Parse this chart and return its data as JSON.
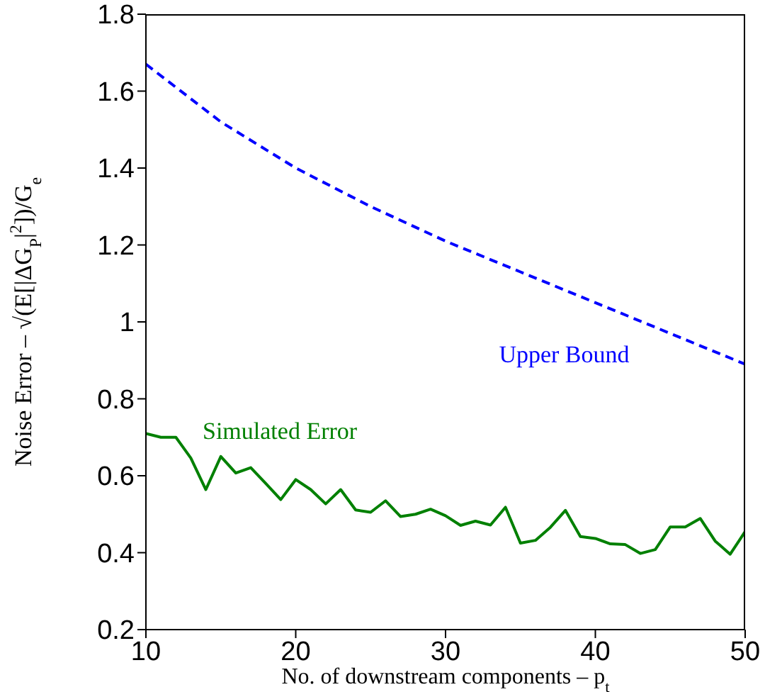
{
  "chart_data": {
    "type": "line",
    "xlabel": "No. of downstream components – p$_{t}$",
    "ylabel": "Noise Error – √(E[|ΔG$_{P}$|$^{2}$])/G$_{e}$",
    "series": [
      {
        "name": "Upper Bound",
        "color": "#0000ff",
        "line_style": "dashed",
        "x": [
          10,
          15,
          20,
          25,
          30,
          35,
          40,
          45,
          50
        ],
        "values": [
          1.67,
          1.52,
          1.4,
          1.3,
          1.21,
          1.13,
          1.05,
          0.97,
          0.89
        ]
      },
      {
        "name": "Simulated Error",
        "color": "#008000",
        "line_style": "solid",
        "x": [
          10,
          11,
          12,
          13,
          14,
          15,
          16,
          17,
          18,
          19,
          20,
          21,
          22,
          23,
          24,
          25,
          26,
          27,
          28,
          29,
          30,
          31,
          32,
          33,
          34,
          35,
          36,
          37,
          38,
          39,
          40,
          41,
          42,
          43,
          44,
          45,
          46,
          47,
          48,
          49,
          50
        ],
        "values": [
          0.71,
          0.7,
          0.7,
          0.646,
          0.564,
          0.65,
          0.607,
          0.621,
          0.58,
          0.538,
          0.59,
          0.564,
          0.527,
          0.564,
          0.511,
          0.505,
          0.535,
          0.494,
          0.5,
          0.513,
          0.496,
          0.471,
          0.482,
          0.472,
          0.518,
          0.425,
          0.432,
          0.466,
          0.51,
          0.442,
          0.437,
          0.423,
          0.421,
          0.398,
          0.408,
          0.467,
          0.467,
          0.489,
          0.43,
          0.396,
          0.455
        ]
      }
    ],
    "xlim": [
      10,
      50
    ],
    "xticks": [
      10,
      20,
      30,
      40,
      50
    ],
    "ylim": [
      0.2,
      1.8
    ],
    "yticks": [
      0.2,
      0.4,
      0.6,
      0.8,
      1,
      1.2,
      1.4,
      1.6,
      1.8
    ],
    "grid": false,
    "legend": false,
    "marker": "none"
  }
}
